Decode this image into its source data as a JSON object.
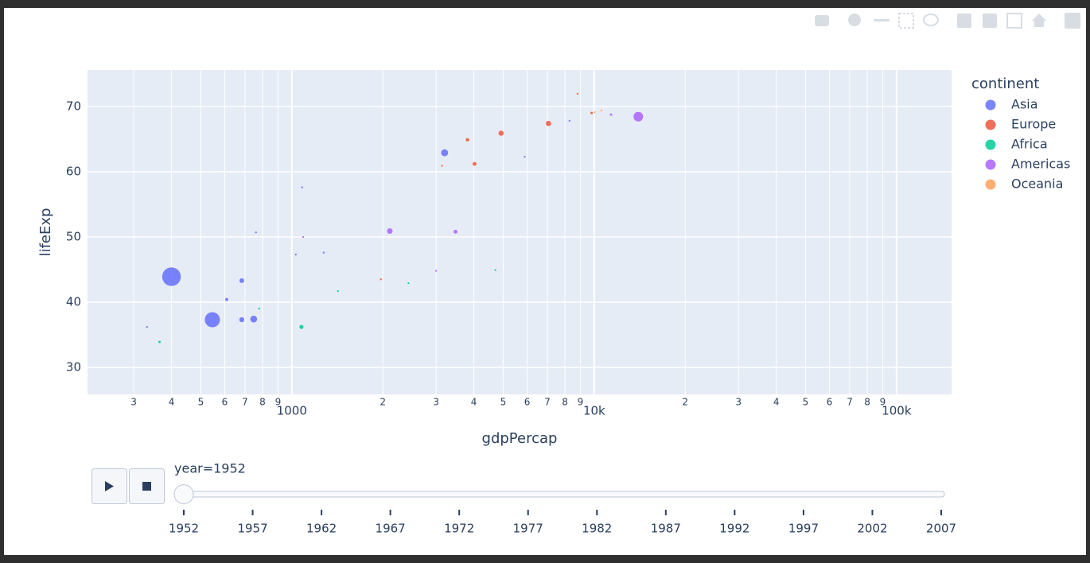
{
  "chart_data": {
    "type": "scatter",
    "x_label": "gdpPercap",
    "y_label": "lifeExp",
    "log_x": true,
    "grid": true,
    "xlim": [
      211,
      152000
    ],
    "ylim": [
      25.85,
      75.6
    ],
    "yticks": [
      30,
      40,
      50,
      60,
      70
    ],
    "xticks": [
      {
        "value": 300,
        "label": "3"
      },
      {
        "value": 400,
        "label": "4"
      },
      {
        "value": 500,
        "label": "5"
      },
      {
        "value": 600,
        "label": "6"
      },
      {
        "value": 700,
        "label": "7"
      },
      {
        "value": 800,
        "label": "8"
      },
      {
        "value": 900,
        "label": "9"
      },
      1000,
      {
        "value": 2000,
        "label": "2"
      },
      {
        "value": 3000,
        "label": "3"
      },
      {
        "value": 4000,
        "label": "4"
      },
      {
        "value": 5000,
        "label": "5"
      },
      {
        "value": 6000,
        "label": "6"
      },
      {
        "value": 7000,
        "label": "7"
      },
      {
        "value": 8000,
        "label": "8"
      },
      {
        "value": 9000,
        "label": "9"
      },
      {
        "value": 10000,
        "label": "10k"
      },
      {
        "value": 20000,
        "label": "2"
      },
      {
        "value": 30000,
        "label": "3"
      },
      {
        "value": 40000,
        "label": "4"
      },
      {
        "value": 50000,
        "label": "5"
      },
      {
        "value": 60000,
        "label": "6"
      },
      {
        "value": 70000,
        "label": "7"
      },
      {
        "value": 80000,
        "label": "8"
      },
      {
        "value": 90000,
        "label": "9"
      },
      {
        "value": 100000,
        "label": "100k"
      }
    ],
    "legend_title": "continent",
    "legend_position": "right",
    "series": [
      {
        "name": "Asia",
        "color": "#636efa",
        "x": [
          400,
          546,
          3200,
          748,
          683,
          683,
          609,
          332,
          761,
          1031,
          1274,
          5890,
          8290,
          1082
        ],
        "y": [
          43.9,
          37.3,
          62.9,
          37.4,
          43.3,
          37.3,
          40.4,
          36.2,
          50.7,
          47.3,
          47.6,
          62.3,
          67.8,
          57.6
        ],
        "size": [
          556,
          372,
          86,
          82,
          41,
          46,
          20,
          8,
          8,
          9,
          9,
          3,
          1,
          2
        ]
      },
      {
        "name": "Europe",
        "color": "#EF553B",
        "x": [
          7060,
          4920,
          3810,
          4020,
          9800,
          1970,
          3140,
          8810
        ],
        "y": [
          67.4,
          65.9,
          64.9,
          61.2,
          69.0,
          43.5,
          60.9,
          71.95
        ],
        "size": [
          50,
          47,
          25,
          28,
          14,
          3,
          7,
          3
        ]
      },
      {
        "name": "Africa",
        "color": "#00cc96",
        "x": [
          1076,
          365,
          1420,
          780,
          4710,
          2430
        ],
        "y": [
          36.2,
          33.9,
          41.7,
          39.0,
          44.9,
          42.9
        ],
        "size": [
          33,
          14,
          9,
          5,
          4,
          3
        ]
      },
      {
        "name": "Americas",
        "color": "#ab63fa",
        "x": [
          13990,
          2109,
          3478,
          3000,
          11367,
          1090
        ],
        "y": [
          68.44,
          50.9,
          50.8,
          44.8,
          68.75,
          50.0
        ],
        "size": [
          158,
          57,
          30,
          5,
          14,
          3
        ]
      },
      {
        "name": "Oceania",
        "color": "#FFA15A",
        "x": [
          10040,
          10557
        ],
        "y": [
          69.12,
          69.39
        ],
        "size": [
          8.7,
          1.99
        ]
      }
    ],
    "slider": {
      "current_label": "year=1952",
      "steps": [
        "1952",
        "1957",
        "1962",
        "1967",
        "1972",
        "1977",
        "1982",
        "1987",
        "1992",
        "1997",
        "2002",
        "2007"
      ]
    }
  }
}
